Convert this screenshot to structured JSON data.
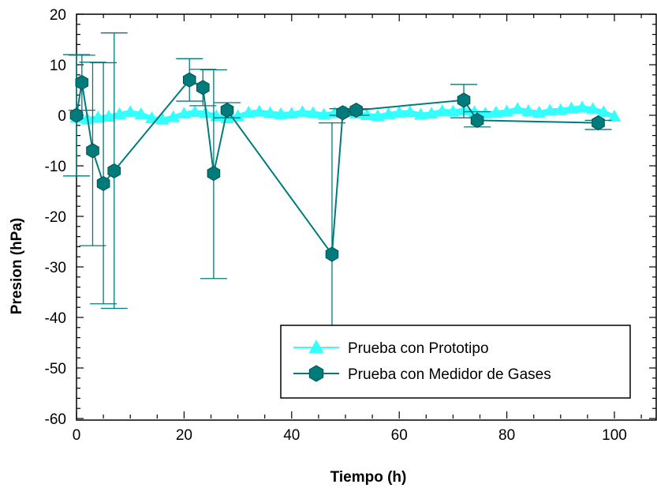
{
  "chart_data": {
    "type": "scatter",
    "title": "",
    "xlabel": "Tiempo (h)",
    "ylabel": "Presion (hPa)",
    "xlim": [
      0,
      108
    ],
    "ylim": [
      -60,
      20
    ],
    "x_ticks": [
      0,
      20,
      40,
      60,
      80,
      100
    ],
    "y_ticks": [
      -60,
      -50,
      -40,
      -30,
      -20,
      -10,
      0,
      10,
      20
    ],
    "legend_position": "bottom-right",
    "grid": false,
    "series": [
      {
        "name": "Prueba con Prototipo",
        "color": "#33ffff",
        "marker": "triangle",
        "x": [
          0,
          2,
          4,
          6,
          8,
          10,
          12,
          14,
          16,
          18,
          20,
          22,
          24,
          26,
          28,
          30,
          32,
          34,
          36,
          38,
          40,
          42,
          44,
          46,
          48,
          50,
          52,
          54,
          56,
          58,
          60,
          62,
          64,
          66,
          68,
          70,
          72,
          74,
          76,
          78,
          80,
          82,
          84,
          86,
          88,
          90,
          92,
          94,
          96,
          98,
          100
        ],
        "y": [
          -0.5,
          -0.8,
          -0.5,
          -0.3,
          0.2,
          0.6,
          0.2,
          -0.6,
          -0.9,
          -0.4,
          0.3,
          0.6,
          0.4,
          -0.2,
          -0.6,
          -0.2,
          0.5,
          0.7,
          0.4,
          0.2,
          0.3,
          0.6,
          0.4,
          0.1,
          0.4,
          0.6,
          0.3,
          0,
          -0.2,
          0.2,
          0.5,
          0.6,
          0.1,
          0.3,
          0.8,
          0.7,
          1.0,
          0.6,
          0.3,
          0.5,
          0.7,
          1.2,
          0.8,
          0.5,
          0.9,
          1.0,
          1.3,
          1.5,
          1.2,
          0.6,
          -0.3
        ]
      },
      {
        "name": "Prueba con Medidor  de Gases",
        "color": "#007b7b",
        "marker": "hexagon",
        "x": [
          0,
          1,
          3,
          5,
          7,
          21,
          23.5,
          25.5,
          28,
          47.5,
          49.5,
          52,
          72,
          74.5,
          97
        ],
        "y": [
          0,
          6.5,
          -7,
          -13.5,
          -11,
          7,
          5.5,
          -11.5,
          1,
          -27.5,
          0.5,
          1,
          3,
          -1,
          -1.5
        ],
        "err_upper": [
          12,
          11.9,
          10.5,
          10.4,
          16.3,
          11.2,
          9.1,
          9.0,
          2.5,
          -1.5,
          1.3,
          1.3,
          6.1,
          0.7,
          -1.0
        ],
        "err_lower": [
          -12,
          1,
          -25.8,
          -37.3,
          -38.2,
          2.8,
          1.9,
          -32.3,
          -0.5,
          -42,
          0,
          0,
          -0.5,
          -2.3,
          -2.8
        ]
      }
    ]
  }
}
